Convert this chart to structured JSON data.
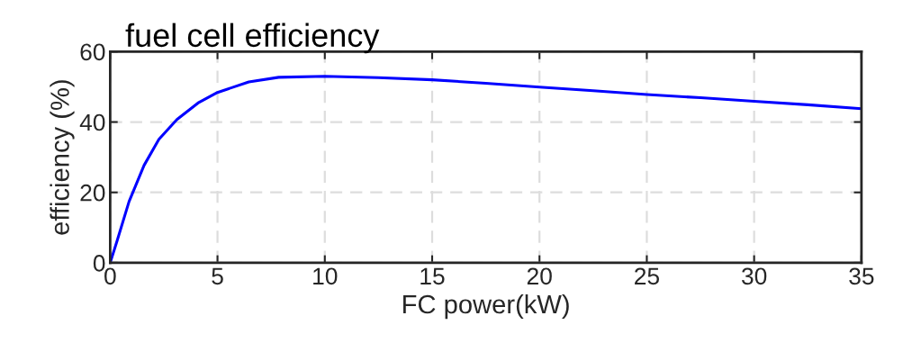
{
  "chart_data": {
    "type": "line",
    "title": "fuel cell efficiency",
    "xlabel": "FC power(kW)",
    "ylabel": "efficiency (%)",
    "x": [
      0,
      0.32,
      0.88,
      1.58,
      2.27,
      3.11,
      4.09,
      5,
      6.46,
      7.85,
      10,
      12.5,
      15,
      17.5,
      20,
      22.5,
      25,
      27.5,
      30,
      32.5,
      35
    ],
    "series": [
      {
        "color": "#0000ff",
        "values": [
          0,
          6.2,
          17.4,
          27.7,
          35.1,
          40.7,
          45.4,
          48.4,
          51.4,
          52.7,
          53,
          52.6,
          52,
          51,
          49.9,
          48.9,
          47.8,
          46.9,
          45.9,
          44.9,
          43.8
        ]
      }
    ],
    "xlim": [
      0,
      35
    ],
    "xticks": [
      0,
      5,
      10,
      15,
      20,
      25,
      30,
      35
    ],
    "ylim": [
      0,
      60
    ],
    "yticks": [
      0,
      20,
      40,
      60
    ],
    "grid": true,
    "legend": false,
    "marker": "none",
    "line_style": "solid"
  }
}
